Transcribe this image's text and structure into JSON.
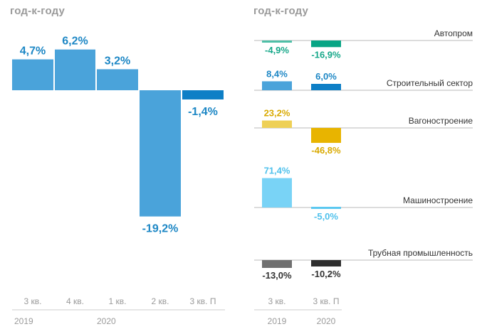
{
  "left_title": "год-к-году",
  "right_title": "год-к-году",
  "chart_data": [
    {
      "type": "bar",
      "title": "год-к-году",
      "categories": [
        "3 кв.",
        "4 кв.",
        "1 кв.",
        "2 кв.",
        "3 кв. П"
      ],
      "year_groups": [
        {
          "label": "2019",
          "categories": [
            "3 кв.",
            "4 кв."
          ]
        },
        {
          "label": "2020",
          "categories": [
            "1 кв.",
            "2 кв.",
            "3 кв. П"
          ]
        }
      ],
      "values": [
        4.7,
        6.2,
        3.2,
        -19.2,
        -1.4
      ],
      "value_labels": [
        "4,7%",
        "6,2%",
        "3,2%",
        "-19,2%",
        "-1,4%"
      ],
      "bar_colors": [
        "#4aa3da",
        "#4aa3da",
        "#4aa3da",
        "#4aa3da",
        "#0e7fc6"
      ],
      "label_color": "#1d87c5",
      "ylim": [
        -20,
        7
      ],
      "grid": false
    },
    {
      "type": "bar",
      "title": "год-к-году",
      "categories": [
        "3 кв.",
        "3 кв. П"
      ],
      "year_labels": [
        "2019",
        "2020"
      ],
      "series": [
        {
          "name": "Автопром",
          "values": [
            -4.9,
            -16.9
          ],
          "value_labels": [
            "-4,9%",
            "-16,9%"
          ],
          "colors": [
            "#4fbfa7",
            "#08a585"
          ],
          "label_color": "#17a88a"
        },
        {
          "name": "Строительный сектор",
          "values": [
            8.4,
            6.0
          ],
          "value_labels": [
            "8,4%",
            "6,0%"
          ],
          "colors": [
            "#4aa3da",
            "#0e7fc6"
          ],
          "label_color": "#1d87c5"
        },
        {
          "name": "Вагоностроение",
          "values": [
            23.2,
            -46.8
          ],
          "value_labels": [
            "23,2%",
            "-46,8%"
          ],
          "colors": [
            "#eed056",
            "#e8b400"
          ],
          "label_color": "#d9a900"
        },
        {
          "name": "Машиностроение",
          "values": [
            71.4,
            -5.0
          ],
          "value_labels": [
            "71,4%",
            "-5,0%"
          ],
          "colors": [
            "#79d3f6",
            "#5bc8f0"
          ],
          "label_color": "#4fc1ec"
        },
        {
          "name": "Трубная промышленность",
          "values": [
            -13.0,
            -10.2
          ],
          "value_labels": [
            "-13,0%",
            "-10,2%"
          ],
          "colors": [
            "#707070",
            "#2f2f2f"
          ],
          "label_color": "#333333"
        }
      ],
      "grid": false
    }
  ],
  "colors": {
    "axis_text": "#9a9a9a",
    "separator": "#cccccc",
    "baseline": "#c8c8c8"
  }
}
